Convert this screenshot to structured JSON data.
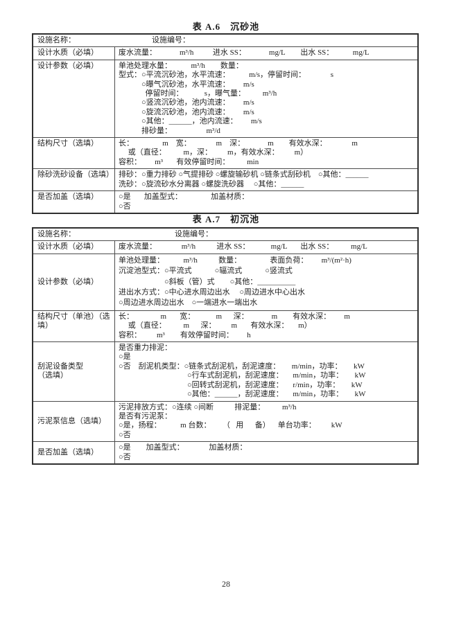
{
  "page": {
    "number": "28"
  },
  "table_a6": {
    "title": "表 A.6　沉砂池",
    "name_row": "设施名称：                                        设施编号：",
    "rows": [
      {
        "label": "设计水质（必填）",
        "lines": [
          "废水流量：            m³/h          进水 SS：            mg/L        出水 SS：          mg/L"
        ]
      },
      {
        "label": "设计参数（必填）",
        "lines": [
          "单池处理水量：          m³/h        数量：",
          "型式：○平流沉砂池，水平流速：          m/s，停留时间：             s",
          "　　　○曝气沉砂池，水平流速：       m/s",
          "　　　  停留时间：           s，曝气量：         m³/h",
          "　　　○竖流沉砂池，池内流速：       m/s",
          "　　　○旋流沉砂池，池内流速：       m/s",
          "　　　○其他：______，池内流速：       m/s",
          "　　　排砂量：                  m³/d"
        ]
      },
      {
        "label": "结构尺寸（选填）",
        "lines": [
          "长：               m    宽：             m    深：            m        有效水深：             m",
          "     或（直径：         m，深：        m，有效水深：        m）",
          "容积：       m³       有效停留时间：         min"
        ]
      },
      {
        "label": "除砂洗砂设备（选填）",
        "lines": [
          "排砂：○重力排砂 ○气提排砂 ○螺旋输砂机 ○链条式刮砂机    ○其他：______",
          "洗砂：○旋流砂水分离器 ○螺旋洗砂器     ○其他：______"
        ]
      },
      {
        "label": "是否加盖（选填）",
        "lines": [
          "○是       加盖型式：               加盖材质：",
          "○否"
        ]
      }
    ]
  },
  "table_a7": {
    "title": "表 A.7　初沉池",
    "name_row": "设施名称：                                                    设施编号：",
    "rows": [
      {
        "label": "设计水质（必填）",
        "lines": [
          "废水流量：             m³/h           进水 SS：           mg/L       出水 SS：         mg/L"
        ]
      },
      {
        "label": "设计参数（必填）",
        "lines": [
          "单池处理量：          m³/h           数量：               表面负荷：       m³/(m²·h)",
          "沉淀池型式：○平流式            ○辐流式            ○竖流式",
          "　　　　　　○斜板（管）式        ○其他：__________",
          "进出水方式：○中心进水周边出水     ○周边进水中心出水",
          "○周边进水周边出水    ○一端进水一端出水"
        ]
      },
      {
        "label": "结构尺寸（单池）（选\n填）",
        "lines": [
          "长：              m       宽：           m      深：            m        有效水深：       m",
          "     或（直径：         m      深：        m       有效水深：     m）",
          "容积：        m³        有效停留时间：       h"
        ]
      },
      {
        "label": "刮泥设备类型\n（选填）",
        "lines": [
          "是否重力排泥：",
          "○是",
          "○否　刮泥机类型：○链条式刮泥机，刮泥速度：      m/min，功率：      kW",
          "　　　　　　　　　○行车式刮泥机，刮泥速度：     m/min，功率：      kW",
          "　　　　　　　　　○回转式刮泥机，刮泥速度：     r/min，功率：      kW",
          "　　　　　　　　　○其他：______，刮泥速度：     m/min，功率：      kW"
        ]
      },
      {
        "label": "污泥泵信息（选填）",
        "lines": [
          "污泥排放方式：○连续 ○间断           排泥量：         m³/h",
          "是否有污泥泵：",
          "○是，扬程：          m 台数：      （   用      备）    单台功率：        kW",
          "○否"
        ]
      },
      {
        "label": "是否加盖（选填）",
        "lines": [
          "○是        加盖型式：             加盖材质：",
          "○否"
        ]
      }
    ]
  }
}
